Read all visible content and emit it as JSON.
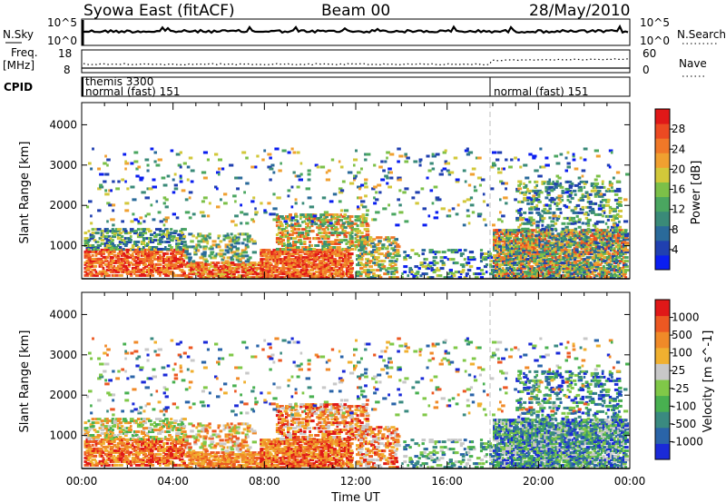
{
  "header": {
    "station": "Syowa East (fitACF)",
    "beam": "Beam 00",
    "date": "28/May/2010"
  },
  "noise_panel": {
    "left_label": "N.Sky",
    "right_label": "N.Search",
    "left_ticks": [
      "10^5",
      "10^0"
    ],
    "right_ticks": [
      "10^5",
      "10^0"
    ]
  },
  "freq_panel": {
    "left_label_1": "Freq.",
    "left_label_2": "[MHz]",
    "right_label": "Nave",
    "left_ticks": [
      "18",
      "8"
    ],
    "right_ticks": [
      "60",
      "0"
    ]
  },
  "cpid_panel": {
    "label": "CPID",
    "entries": [
      {
        "line1": "themis 3300",
        "line2": "normal (fast) 151",
        "start_hour": 0
      },
      {
        "line1": "",
        "line2": "normal (fast) 151",
        "start_hour": 18
      }
    ]
  },
  "chart_data": [
    {
      "type": "heatmap",
      "title": "Power",
      "ylabel": "Slant Range [km]",
      "ylim": [
        180,
        4550
      ],
      "y_ticks": [
        "1000",
        "2000",
        "3000",
        "4000"
      ],
      "xlim": [
        0,
        24
      ],
      "colorbar": {
        "label": "Power [dB]",
        "range": [
          0,
          32
        ],
        "ticks": [
          "4",
          "8",
          "12",
          "16",
          "20",
          "24",
          "28"
        ],
        "colors": [
          "#0a1ef0",
          "#2040b0",
          "#2a6a9a",
          "#3a8a78",
          "#4aa660",
          "#7cc048",
          "#d2c83a",
          "#f0a030",
          "#f07828",
          "#ec4a22",
          "#e01818"
        ]
      }
    },
    {
      "type": "heatmap",
      "title": "Velocity",
      "ylabel": "Slant Range [km]",
      "ylim": [
        180,
        4550
      ],
      "y_ticks": [
        "1000",
        "2000",
        "3000",
        "4000"
      ],
      "xlim": [
        0,
        24
      ],
      "xlabel": "Time UT",
      "x_ticks": [
        "00:00",
        "04:00",
        "08:00",
        "12:00",
        "16:00",
        "20:00",
        "00:00"
      ],
      "colorbar": {
        "label": "Velocity [m s^-1]",
        "ticks": [
          "1000",
          "500",
          "100",
          "25",
          "-25",
          "-100",
          "-500",
          "-1000"
        ],
        "colors": [
          "#1a2ad8",
          "#2a64a8",
          "#3a8a80",
          "#48b050",
          "#80c848",
          "#c8c8c8",
          "#f0b030",
          "#f08a28",
          "#ec5822",
          "#e01818"
        ]
      }
    }
  ]
}
